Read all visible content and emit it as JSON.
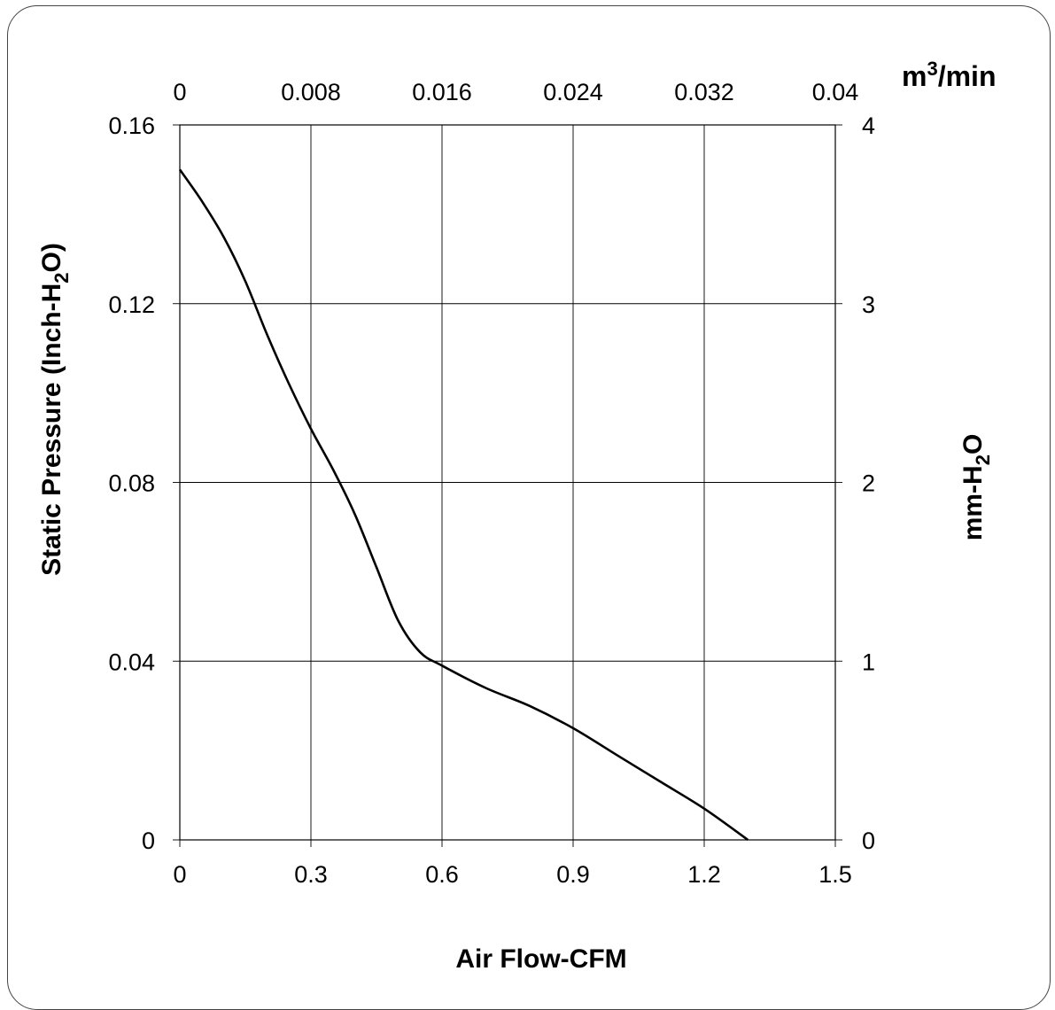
{
  "chart_data": {
    "type": "line",
    "xlabel": "Air Flow-CFM",
    "ylabel": {
      "main": "Static Pressure (Inch-H",
      "sub": "2",
      "end": "O)"
    },
    "y2label": {
      "main": "mm-H",
      "sub": "2",
      "end": "O"
    },
    "x2label": {
      "main": "m",
      "sup": "3",
      "end": "/min"
    },
    "xlim": [
      0,
      1.5
    ],
    "ylim": [
      0,
      0.16
    ],
    "x2lim": [
      0,
      0.04
    ],
    "y2lim": [
      0,
      4
    ],
    "x_ticks": [
      "0",
      "0.3",
      "0.6",
      "0.9",
      "1.2",
      "1.5"
    ],
    "y_ticks": [
      "0",
      "0.04",
      "0.08",
      "0.12",
      "0.16"
    ],
    "x2_ticks": [
      "0",
      "0.008",
      "0.016",
      "0.024",
      "0.032",
      "0.04"
    ],
    "y2_ticks": [
      "0",
      "1",
      "2",
      "3",
      "4"
    ],
    "grid": true,
    "series": [
      {
        "x": [
          0,
          0.05,
          0.1,
          0.15,
          0.2,
          0.25,
          0.3,
          0.35,
          0.4,
          0.45,
          0.5,
          0.55,
          0.6,
          0.7,
          0.8,
          0.9,
          1.0,
          1.1,
          1.2,
          1.3
        ],
        "y": [
          0.15,
          0.143,
          0.135,
          0.125,
          0.113,
          0.102,
          0.092,
          0.083,
          0.073,
          0.061,
          0.049,
          0.042,
          0.039,
          0.034,
          0.03,
          0.025,
          0.019,
          0.013,
          0.007,
          0.0
        ]
      }
    ]
  }
}
